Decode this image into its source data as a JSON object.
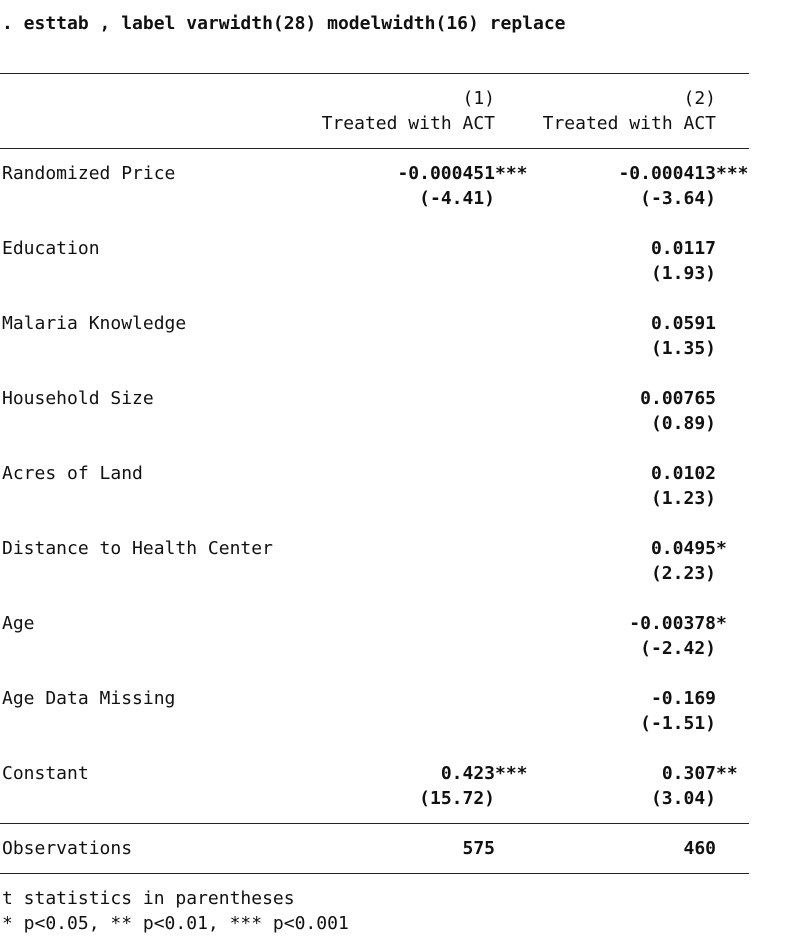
{
  "command": ". esttab , label varwidth(28) modelwidth(16) replace",
  "header": {
    "model_numbers": [
      "(1)",
      "(2)"
    ],
    "model_titles": [
      "Treated with ACT",
      "Treated with ACT"
    ]
  },
  "rows": [
    {
      "label": "Randomized Price",
      "c1": "-0.000451",
      "c1_stars": "***",
      "c1_t": "(-4.41)",
      "c2": "-0.000413",
      "c2_stars": "***",
      "c2_t": "(-3.64)"
    },
    {
      "label": "Education",
      "c1": "",
      "c1_stars": "",
      "c1_t": "",
      "c2": "0.0117",
      "c2_stars": "",
      "c2_t": "(1.93)"
    },
    {
      "label": "Malaria Knowledge",
      "c1": "",
      "c1_stars": "",
      "c1_t": "",
      "c2": "0.0591",
      "c2_stars": "",
      "c2_t": "(1.35)"
    },
    {
      "label": "Household Size",
      "c1": "",
      "c1_stars": "",
      "c1_t": "",
      "c2": "0.00765",
      "c2_stars": "",
      "c2_t": "(0.89)"
    },
    {
      "label": "Acres of Land",
      "c1": "",
      "c1_stars": "",
      "c1_t": "",
      "c2": "0.0102",
      "c2_stars": "",
      "c2_t": "(1.23)"
    },
    {
      "label": "Distance to Health Center",
      "c1": "",
      "c1_stars": "",
      "c1_t": "",
      "c2": "0.0495",
      "c2_stars": "*",
      "c2_t": "(2.23)"
    },
    {
      "label": "Age",
      "c1": "",
      "c1_stars": "",
      "c1_t": "",
      "c2": "-0.00378",
      "c2_stars": "*",
      "c2_t": "(-2.42)"
    },
    {
      "label": "Age Data Missing",
      "c1": "",
      "c1_stars": "",
      "c1_t": "",
      "c2": "-0.169",
      "c2_stars": "",
      "c2_t": "(-1.51)"
    },
    {
      "label": "Constant",
      "c1": "0.423",
      "c1_stars": "***",
      "c1_t": "(15.72)",
      "c2": "0.307",
      "c2_stars": "**",
      "c2_t": "(3.04)"
    }
  ],
  "observations": {
    "label": "Observations",
    "c1": "575",
    "c2": "460"
  },
  "notes": [
    "t statistics in parentheses",
    "* p<0.05, ** p<0.01, *** p<0.001"
  ]
}
